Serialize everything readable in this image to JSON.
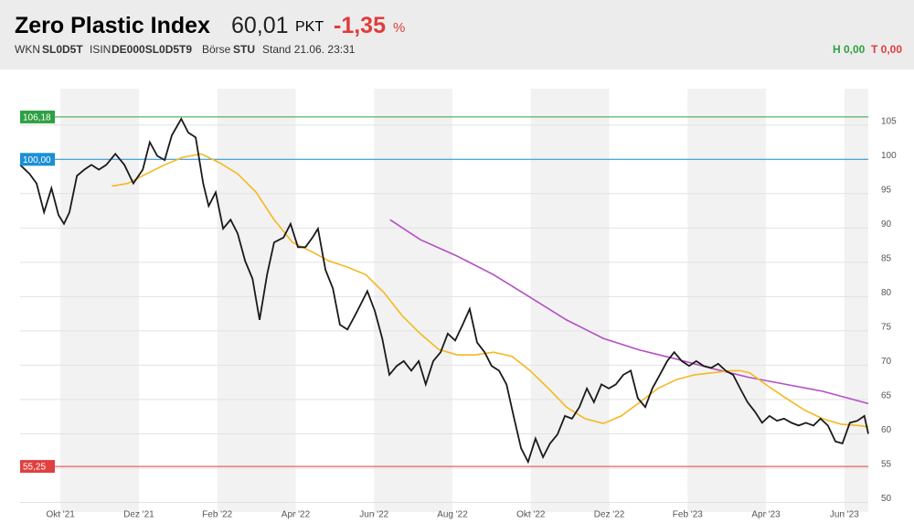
{
  "header": {
    "title": "Zero Plastic Index",
    "price": "60,01",
    "unit": "PKT",
    "change": "-1,35",
    "change_unit": "%",
    "wkn_label": "WKN",
    "wkn": "SL0D5T",
    "isin_label": "ISIN",
    "isin": "DE000SL0D5T9",
    "exchange_label": "Börse",
    "exchange": "STU",
    "stand": "Stand 21.06. 23:31",
    "high": "H 0,00",
    "low": "T 0,00"
  },
  "chart_data": {
    "type": "line",
    "xlim": [
      -1.03,
      20.61
    ],
    "ylim": [
      48.6,
      110.3
    ],
    "xticks": [
      {
        "value": 0,
        "label": "Okt '21"
      },
      {
        "value": 2,
        "label": "Dez '21"
      },
      {
        "value": 4,
        "label": "Feb '22"
      },
      {
        "value": 6,
        "label": "Apr '22"
      },
      {
        "value": 8,
        "label": "Jun '22"
      },
      {
        "value": 10,
        "label": "Aug '22"
      },
      {
        "value": 12,
        "label": "Okt '22"
      },
      {
        "value": 14,
        "label": "Dez '22"
      },
      {
        "value": 16,
        "label": "Feb '23"
      },
      {
        "value": 18,
        "label": "Apr '23"
      },
      {
        "value": 20,
        "label": "Jun '23"
      }
    ],
    "yticks": [
      50,
      55,
      60,
      65,
      70,
      75,
      80,
      85,
      90,
      95,
      100,
      105
    ],
    "grid": true,
    "reference_lines": [
      {
        "value": 106.18,
        "label": "106,18",
        "color": "#2ea043"
      },
      {
        "value": 100,
        "label": "100,00",
        "color": "#1a8fd6"
      },
      {
        "value": 55.25,
        "label": "55,25",
        "color": "#e04040"
      }
    ],
    "series": [
      {
        "color": "#1a1a1a",
        "x": [
          -1.03,
          -0.79,
          -0.61,
          -0.42,
          -0.23,
          -0.05,
          0.09,
          0.23,
          0.42,
          0.61,
          0.79,
          0.98,
          1.17,
          1.4,
          1.63,
          1.86,
          2.1,
          2.28,
          2.47,
          2.66,
          2.84,
          3.08,
          3.26,
          3.45,
          3.64,
          3.78,
          3.96,
          4.15,
          4.34,
          4.52,
          4.71,
          4.9,
          5.08,
          5.27,
          5.45,
          5.69,
          5.87,
          6.06,
          6.25,
          6.43,
          6.57,
          6.76,
          6.95,
          7.13,
          7.32,
          7.51,
          7.69,
          7.83,
          8.02,
          8.21,
          8.39,
          8.58,
          8.76,
          8.95,
          9.14,
          9.32,
          9.51,
          9.7,
          9.88,
          10.07,
          10.26,
          10.44,
          10.63,
          10.82,
          11.0,
          11.19,
          11.38,
          11.56,
          11.75,
          11.93,
          12.12,
          12.31,
          12.49,
          12.68,
          12.87,
          13.05,
          13.24,
          13.43,
          13.61,
          13.8,
          13.99,
          14.17,
          14.36,
          14.55,
          14.73,
          14.92,
          15.1,
          15.29,
          15.48,
          15.66,
          15.85,
          16.04,
          16.22,
          16.41,
          16.6,
          16.78,
          16.97,
          17.16,
          17.34,
          17.53,
          17.72,
          17.9,
          18.09,
          18.28,
          18.46,
          18.65,
          18.83,
          19.02,
          19.21,
          19.39,
          19.58,
          19.77,
          19.95,
          20.14,
          20.33,
          20.51,
          20.61
        ],
        "values": [
          99.2,
          97.9,
          96.5,
          92.3,
          95.8,
          91.9,
          90.6,
          92.3,
          97.6,
          98.5,
          99.2,
          98.5,
          99.2,
          100.8,
          99.2,
          96.5,
          98.5,
          102.5,
          100.5,
          99.9,
          103.5,
          105.9,
          103.9,
          103.2,
          96.5,
          93.2,
          95.2,
          89.9,
          91.2,
          89.2,
          85.2,
          82.6,
          76.6,
          83.2,
          87.9,
          88.6,
          90.6,
          87.2,
          87.2,
          88.6,
          89.9,
          83.9,
          81.2,
          75.9,
          75.2,
          77.2,
          79.2,
          80.8,
          77.9,
          73.9,
          68.6,
          69.9,
          70.6,
          69.2,
          70.6,
          67.2,
          70.6,
          71.9,
          74.6,
          73.6,
          75.9,
          78.2,
          73.3,
          71.9,
          69.9,
          69.2,
          67.2,
          62.6,
          57.9,
          55.9,
          59.3,
          56.6,
          58.6,
          59.9,
          62.6,
          62.2,
          63.9,
          66.6,
          64.6,
          67.2,
          66.6,
          67.2,
          68.6,
          69.2,
          65.2,
          63.9,
          66.6,
          68.6,
          70.6,
          71.9,
          70.6,
          69.9,
          70.6,
          69.9,
          69.6,
          70.2,
          69.2,
          68.6,
          66.6,
          64.6,
          63.2,
          61.6,
          62.6,
          61.9,
          62.2,
          61.6,
          61.2,
          61.6,
          61.2,
          62.2,
          61.2,
          58.9,
          58.6,
          61.6,
          61.9,
          62.6,
          60.01
        ]
      },
      {
        "color": "#f5b820",
        "x": [
          1.31,
          1.72,
          2.19,
          2.66,
          3.12,
          3.59,
          4.06,
          4.52,
          4.99,
          5.45,
          5.92,
          6.39,
          6.85,
          7.32,
          7.79,
          8.25,
          8.72,
          9.18,
          9.65,
          10.12,
          10.58,
          11.05,
          11.52,
          11.98,
          12.45,
          12.91,
          13.38,
          13.85,
          14.31,
          14.78,
          15.24,
          15.71,
          16.18,
          16.64,
          17.11,
          17.34,
          17.58,
          18.04,
          18.51,
          18.97,
          19.44,
          19.91,
          20.37,
          20.61
        ],
        "values": [
          96.1,
          96.5,
          97.9,
          99.2,
          100.3,
          100.8,
          99.5,
          97.9,
          95.2,
          91.2,
          87.9,
          86.6,
          85.2,
          84.3,
          83.2,
          80.6,
          77.2,
          74.6,
          72.3,
          71.5,
          71.5,
          71.9,
          71.3,
          69.2,
          66.6,
          63.9,
          62.2,
          61.5,
          62.6,
          64.6,
          66.6,
          67.9,
          68.6,
          68.9,
          69.2,
          69.2,
          68.9,
          67.0,
          65.2,
          63.5,
          62.2,
          61.4,
          61.2,
          61.0
        ]
      },
      {
        "color": "#b44fc4",
        "x": [
          8.41,
          9.18,
          10.12,
          11.05,
          11.98,
          12.91,
          13.85,
          14.78,
          15.71,
          16.64,
          17.58,
          18.51,
          19.44,
          20.61
        ],
        "values": [
          91.2,
          88.3,
          85.9,
          83.2,
          79.9,
          76.6,
          73.9,
          72.2,
          70.9,
          69.5,
          68.2,
          67.2,
          66.2,
          64.4
        ]
      }
    ]
  }
}
